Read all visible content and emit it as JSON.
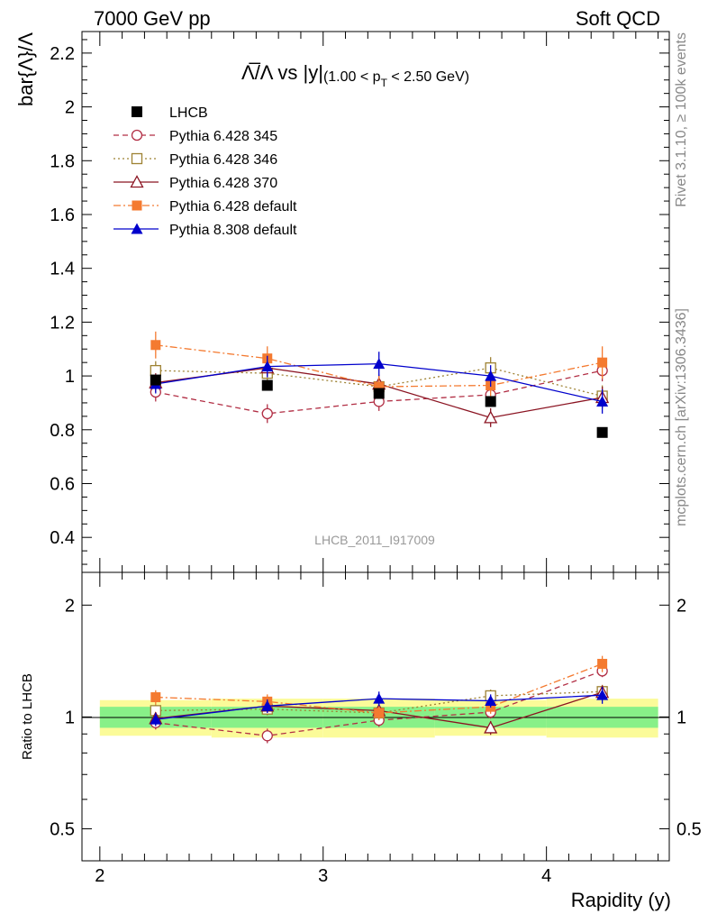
{
  "header": {
    "left": "7000 GeV pp",
    "right": "Soft QCD"
  },
  "side_labels": {
    "rivet": "Rivet 3.1.10, ≥ 100k events",
    "mcplots": "mcplots.cern.ch [arXiv:1306.3436]"
  },
  "analysis_id": "LHCB_2011_I917009",
  "chart_data": [
    {
      "type": "scatter",
      "panel": "main",
      "title_parts": {
        "main": "Λ̅/Λ vs |y|",
        "cut_open": "(1.00 < p",
        "cut_sub": "T",
        "cut_close": " < 2.50 GeV)"
      },
      "ylabel": "bar{Λ}/Λ",
      "xlabel": "Rapidity (y)",
      "xlim": [
        1.92,
        4.55
      ],
      "ylim": [
        0.27,
        2.28
      ],
      "yticks": [
        "0.4",
        "0.6",
        "0.8",
        "1",
        "1.2",
        "1.4",
        "1.6",
        "1.8",
        "2",
        "2.2"
      ],
      "xticks": [
        "2",
        "3",
        "4"
      ],
      "legend_placement": "top-left",
      "x": [
        2.25,
        2.75,
        3.25,
        3.75,
        4.25
      ],
      "data": {
        "name": "LHCB",
        "color": "#000000",
        "values": [
          0.985,
          0.965,
          0.935,
          0.905,
          0.79
        ]
      },
      "series": [
        {
          "name": "Pythia 6.428 345",
          "color": "#b22f45",
          "style": "dashed",
          "marker": "open-circle",
          "values": [
            0.94,
            0.86,
            0.905,
            0.93,
            1.02
          ],
          "errors": [
            0.035,
            0.035,
            0.035,
            0.035,
            0.04
          ]
        },
        {
          "name": "Pythia 6.428 346",
          "color": "#9e8233",
          "style": "dotted",
          "marker": "open-square",
          "values": [
            1.02,
            1.01,
            0.96,
            1.03,
            0.925
          ],
          "errors": [
            0.035,
            0.035,
            0.035,
            0.04,
            0.04
          ]
        },
        {
          "name": "Pythia 6.428 370",
          "color": "#8b1422",
          "style": "solid",
          "marker": "open-triangle",
          "values": [
            0.975,
            1.03,
            0.97,
            0.845,
            0.92
          ],
          "errors": [
            0.035,
            0.035,
            0.035,
            0.035,
            0.04
          ]
        },
        {
          "name": "Pythia 6.428 default",
          "color": "#f47a30",
          "style": "dashdot",
          "marker": "filled-square",
          "values": [
            1.115,
            1.065,
            0.96,
            0.965,
            1.05
          ],
          "errors": [
            0.05,
            0.045,
            0.04,
            0.04,
            0.06
          ]
        },
        {
          "name": "Pythia 8.308 default",
          "color": "#0000cc",
          "style": "solid",
          "marker": "filled-triangle",
          "values": [
            0.97,
            1.035,
            1.045,
            1.0,
            0.905
          ],
          "errors": [
            0.035,
            0.04,
            0.045,
            0.04,
            0.045
          ]
        }
      ]
    },
    {
      "type": "scatter",
      "panel": "ratio",
      "ylabel": "Ratio to LHCB",
      "ylim": [
        0.41,
        2.45
      ],
      "log_scale": true,
      "yticks": [
        "0.5",
        "1",
        "2"
      ],
      "bands": {
        "stat_color": "#88f088",
        "total_color": "#fbfb99",
        "stat": [
          0.065,
          0.065,
          0.065,
          0.065,
          0.065
        ],
        "total": [
          0.11,
          0.12,
          0.12,
          0.11,
          0.12
        ]
      },
      "x": [
        2.25,
        2.75,
        3.25,
        3.75,
        4.25
      ],
      "series": [
        {
          "name": "Pythia 6.428 345",
          "color": "#b22f45",
          "style": "dashed",
          "marker": "open-circle",
          "values": [
            0.965,
            0.89,
            0.98,
            1.03,
            1.33
          ],
          "errors": [
            0.04,
            0.04,
            0.04,
            0.04,
            0.05
          ]
        },
        {
          "name": "Pythia 6.428 346",
          "color": "#9e8233",
          "style": "dotted",
          "marker": "open-square",
          "values": [
            1.04,
            1.05,
            1.025,
            1.14,
            1.17
          ],
          "errors": [
            0.04,
            0.04,
            0.04,
            0.045,
            0.05
          ]
        },
        {
          "name": "Pythia 6.428 370",
          "color": "#8b1422",
          "style": "solid",
          "marker": "open-triangle",
          "values": [
            0.99,
            1.07,
            1.04,
            0.935,
            1.165
          ],
          "errors": [
            0.04,
            0.04,
            0.04,
            0.04,
            0.05
          ]
        },
        {
          "name": "Pythia 6.428 default",
          "color": "#f47a30",
          "style": "dashdot",
          "marker": "filled-square",
          "values": [
            1.13,
            1.1,
            1.025,
            1.065,
            1.39
          ],
          "errors": [
            0.05,
            0.05,
            0.045,
            0.045,
            0.07
          ]
        },
        {
          "name": "Pythia 8.308 default",
          "color": "#0000cc",
          "style": "solid",
          "marker": "filled-triangle",
          "values": [
            0.985,
            1.07,
            1.12,
            1.105,
            1.145
          ],
          "errors": [
            0.04,
            0.045,
            0.05,
            0.045,
            0.06
          ]
        }
      ]
    }
  ]
}
